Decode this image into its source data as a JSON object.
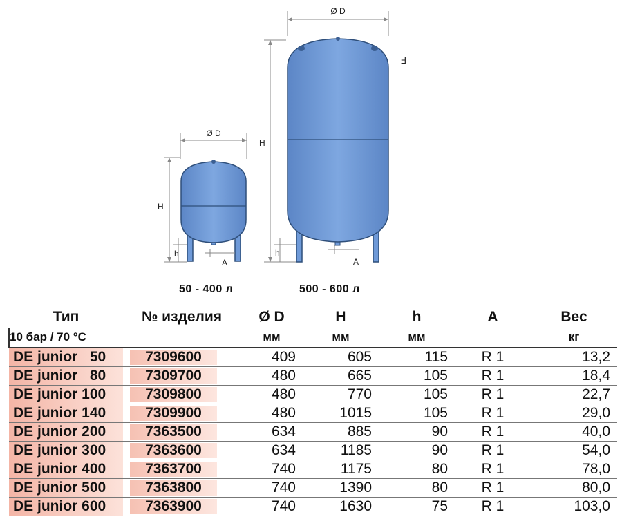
{
  "diagram": {
    "small_tank": {
      "label_d": "Ø D",
      "label_h": "H",
      "label_sh": "h",
      "label_a": "A",
      "caption": "50 - 400 л"
    },
    "large_tank": {
      "label_d": "Ø D",
      "label_h": "H",
      "label_sh": "h",
      "label_a": "A",
      "label_f": "F",
      "caption": "500 - 600 л"
    },
    "colors": {
      "tank_fill": "#6f9ad8",
      "tank_stroke": "#2f4f7a",
      "dim_line": "#888888"
    }
  },
  "table": {
    "headers": [
      "Тип",
      "№ изделия",
      "Ø D",
      "H",
      "h",
      "A",
      "Вес"
    ],
    "spec": "10 бар / 70 °C",
    "units": [
      "",
      "",
      "мм",
      "мм",
      "мм",
      "",
      "кг"
    ],
    "rows": [
      [
        "DE junior   50",
        "7309600",
        "409",
        "605",
        "115",
        "R 1",
        "13,2"
      ],
      [
        "DE junior   80",
        "7309700",
        "480",
        "665",
        "105",
        "R 1",
        "18,4"
      ],
      [
        "DE junior 100",
        "7309800",
        "480",
        "770",
        "105",
        "R 1",
        "22,7"
      ],
      [
        "DE junior 140",
        "7309900",
        "480",
        "1015",
        "105",
        "R 1",
        "29,0"
      ],
      [
        "DE junior 200",
        "7363500",
        "634",
        "885",
        "90",
        "R 1",
        "40,0"
      ],
      [
        "DE junior 300",
        "7363600",
        "634",
        "1185",
        "90",
        "R 1",
        "54,0"
      ],
      [
        "DE junior 400",
        "7363700",
        "740",
        "1175",
        "80",
        "R 1",
        "78,0"
      ],
      [
        "DE junior 500",
        "7363800",
        "740",
        "1390",
        "80",
        "R 1",
        "80,0"
      ],
      [
        "DE junior 600",
        "7363900",
        "740",
        "1630",
        "75",
        "R 1",
        "103,0"
      ]
    ]
  }
}
